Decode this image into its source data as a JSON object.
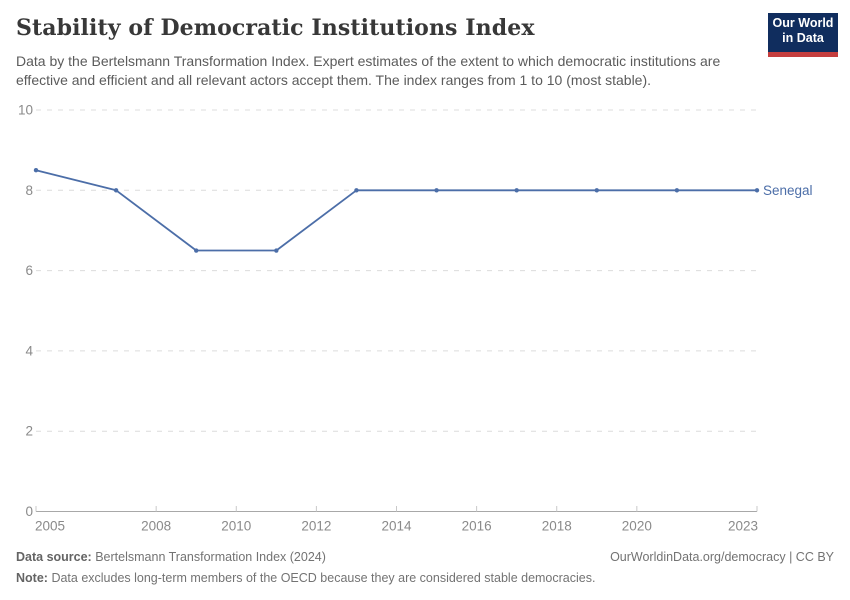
{
  "header": {
    "title": "Stability of Democratic Institutions Index",
    "subtitle": "Data by the Bertelsmann Transformation Index. Expert estimates of the extent to which democratic institutions are effective and efficient and all relevant actors accept them. The index ranges from 1 to 10 (most stable).",
    "logo": {
      "line1": "Our World",
      "line2": "in Data",
      "bg_color": "#102d5e",
      "accent_color": "#c53e3e"
    }
  },
  "chart_data": {
    "type": "line",
    "title": "Stability of Democratic Institutions Index",
    "x": [
      2005,
      2007,
      2009,
      2011,
      2013,
      2015,
      2017,
      2019,
      2021,
      2023
    ],
    "series": [
      {
        "name": "Senegal",
        "color": "#4c6ea8",
        "values": [
          8.5,
          8,
          6.5,
          6.5,
          8,
          8,
          8,
          8,
          8,
          8
        ]
      }
    ],
    "xlabel": "",
    "ylabel": "",
    "xlim": [
      2005,
      2023
    ],
    "ylim": [
      0,
      10
    ],
    "xticks": [
      2005,
      2008,
      2010,
      2012,
      2014,
      2016,
      2018,
      2020,
      2023
    ],
    "yticks": [
      0,
      2,
      4,
      6,
      8,
      10
    ],
    "grid": "horizontal-dashed",
    "legend_position": "line-end-label",
    "marker": "dot",
    "grid_color": "#dcdcdc",
    "axis_color": "#a8a8a8",
    "tick_label_color": "#8a8a8a"
  },
  "footer": {
    "source_label": "Data source:",
    "source_text": "Bertelsmann Transformation Index (2024)",
    "right_text": "OurWorldinData.org/democracy | CC BY",
    "note_label": "Note:",
    "note_text": "Data excludes long-term members of the OECD because they are considered stable democracies."
  }
}
